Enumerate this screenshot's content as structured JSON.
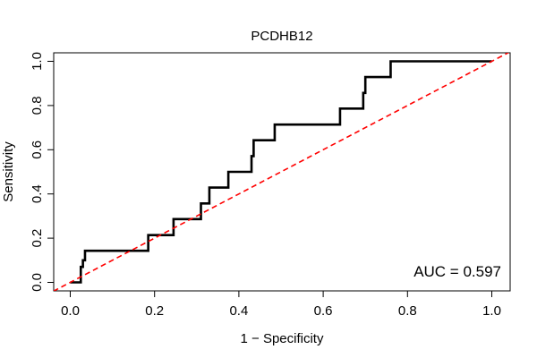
{
  "chart_data": {
    "type": "line",
    "title": "PCDHB12",
    "xlabel": "1 − Specificity",
    "ylabel": "Sensitivity",
    "xlim": [
      0,
      1
    ],
    "ylim": [
      0,
      1
    ],
    "xticks": [
      0.0,
      0.2,
      0.4,
      0.6,
      0.8,
      1.0
    ],
    "yticks": [
      0.0,
      0.2,
      0.4,
      0.6,
      0.8,
      1.0
    ],
    "xtick_labels": [
      "0.0",
      "0.2",
      "0.4",
      "0.6",
      "0.8",
      "1.0"
    ],
    "ytick_labels": [
      "0.0",
      "0.2",
      "0.4",
      "0.6",
      "0.8",
      "1.0"
    ],
    "grid": false,
    "annotation": "AUC = 0.597",
    "series": [
      {
        "name": "ROC curve",
        "color": "#000000",
        "style": "solid",
        "x": [
          0.0,
          0.025,
          0.025,
          0.03,
          0.03,
          0.035,
          0.035,
          0.185,
          0.185,
          0.245,
          0.245,
          0.31,
          0.31,
          0.33,
          0.33,
          0.375,
          0.375,
          0.43,
          0.43,
          0.435,
          0.435,
          0.485,
          0.485,
          0.64,
          0.64,
          0.695,
          0.695,
          0.7,
          0.7,
          0.76,
          0.76,
          1.0
        ],
        "y": [
          0.0,
          0.0,
          0.07,
          0.07,
          0.1,
          0.1,
          0.143,
          0.143,
          0.214,
          0.214,
          0.286,
          0.286,
          0.357,
          0.357,
          0.429,
          0.429,
          0.5,
          0.5,
          0.571,
          0.571,
          0.643,
          0.643,
          0.714,
          0.714,
          0.786,
          0.786,
          0.857,
          0.857,
          0.929,
          0.929,
          1.0,
          1.0
        ]
      },
      {
        "name": "chance line",
        "color": "#ff0000",
        "style": "dashed",
        "x": [
          -0.04,
          1.04
        ],
        "y": [
          -0.04,
          1.04
        ]
      }
    ]
  }
}
